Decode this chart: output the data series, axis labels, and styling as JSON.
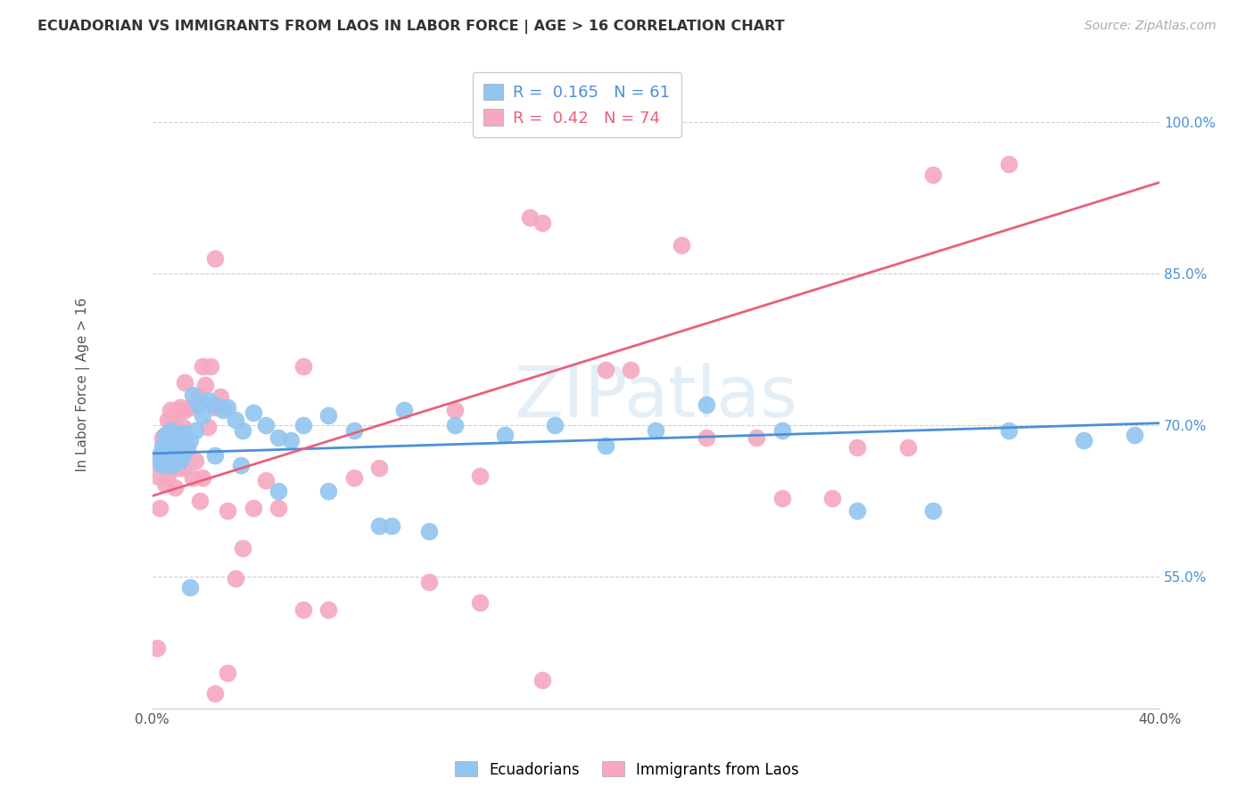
{
  "title": "ECUADORIAN VS IMMIGRANTS FROM LAOS IN LABOR FORCE | AGE > 16 CORRELATION CHART",
  "source": "Source: ZipAtlas.com",
  "ylabel": "In Labor Force | Age > 16",
  "xlim": [
    0.0,
    0.4
  ],
  "ylim": [
    0.42,
    1.06
  ],
  "xticks": [
    0.0,
    0.05,
    0.1,
    0.15,
    0.2,
    0.25,
    0.3,
    0.35,
    0.4
  ],
  "yticks": [
    0.55,
    0.7,
    0.85,
    1.0
  ],
  "ytick_labels": [
    "55.0%",
    "70.0%",
    "85.0%",
    "100.0%"
  ],
  "xtick_labels": [
    "0.0%",
    "",
    "",
    "",
    "",
    "",
    "",
    "",
    "40.0%"
  ],
  "blue_R": 0.165,
  "blue_N": 61,
  "pink_R": 0.42,
  "pink_N": 74,
  "blue_color": "#92c5f0",
  "pink_color": "#f5a8c0",
  "blue_line_color": "#4a90d9",
  "pink_line_color": "#e8607a",
  "background_color": "#ffffff",
  "grid_color": "#d0d0d0",
  "watermark": "ZIPatlas",
  "blue_scatter_x": [
    0.002,
    0.003,
    0.004,
    0.004,
    0.005,
    0.005,
    0.006,
    0.006,
    0.007,
    0.007,
    0.008,
    0.008,
    0.009,
    0.009,
    0.01,
    0.01,
    0.011,
    0.011,
    0.012,
    0.012,
    0.013,
    0.014,
    0.015,
    0.016,
    0.017,
    0.018,
    0.02,
    0.022,
    0.025,
    0.028,
    0.03,
    0.033,
    0.036,
    0.04,
    0.045,
    0.05,
    0.055,
    0.06,
    0.07,
    0.08,
    0.09,
    0.1,
    0.11,
    0.12,
    0.14,
    0.16,
    0.18,
    0.2,
    0.22,
    0.25,
    0.28,
    0.31,
    0.34,
    0.37,
    0.39,
    0.015,
    0.025,
    0.035,
    0.05,
    0.07,
    0.095
  ],
  "blue_scatter_y": [
    0.665,
    0.67,
    0.66,
    0.68,
    0.672,
    0.69,
    0.668,
    0.685,
    0.67,
    0.695,
    0.66,
    0.675,
    0.665,
    0.688,
    0.67,
    0.692,
    0.665,
    0.678,
    0.67,
    0.688,
    0.692,
    0.678,
    0.685,
    0.73,
    0.695,
    0.72,
    0.71,
    0.725,
    0.72,
    0.715,
    0.718,
    0.705,
    0.695,
    0.712,
    0.7,
    0.688,
    0.685,
    0.7,
    0.71,
    0.695,
    0.6,
    0.715,
    0.595,
    0.7,
    0.69,
    0.7,
    0.68,
    0.695,
    0.72,
    0.695,
    0.615,
    0.615,
    0.695,
    0.685,
    0.69,
    0.54,
    0.67,
    0.66,
    0.635,
    0.635,
    0.6
  ],
  "pink_scatter_x": [
    0.002,
    0.002,
    0.003,
    0.003,
    0.004,
    0.004,
    0.005,
    0.005,
    0.006,
    0.006,
    0.006,
    0.007,
    0.007,
    0.007,
    0.008,
    0.008,
    0.008,
    0.009,
    0.009,
    0.009,
    0.01,
    0.01,
    0.01,
    0.011,
    0.011,
    0.012,
    0.012,
    0.013,
    0.013,
    0.014,
    0.015,
    0.016,
    0.017,
    0.018,
    0.019,
    0.02,
    0.021,
    0.022,
    0.023,
    0.025,
    0.027,
    0.03,
    0.033,
    0.036,
    0.04,
    0.045,
    0.05,
    0.06,
    0.07,
    0.08,
    0.09,
    0.11,
    0.13,
    0.155,
    0.18,
    0.21,
    0.24,
    0.27,
    0.3,
    0.155,
    0.02,
    0.025,
    0.06,
    0.12,
    0.15,
    0.19,
    0.22,
    0.25,
    0.28,
    0.31,
    0.34,
    0.13,
    0.025,
    0.03
  ],
  "pink_scatter_y": [
    0.65,
    0.48,
    0.618,
    0.67,
    0.662,
    0.688,
    0.642,
    0.672,
    0.65,
    0.668,
    0.705,
    0.658,
    0.672,
    0.715,
    0.66,
    0.672,
    0.705,
    0.638,
    0.665,
    0.698,
    0.658,
    0.672,
    0.715,
    0.672,
    0.718,
    0.658,
    0.698,
    0.715,
    0.742,
    0.675,
    0.718,
    0.648,
    0.665,
    0.728,
    0.625,
    0.648,
    0.74,
    0.698,
    0.758,
    0.718,
    0.728,
    0.615,
    0.548,
    0.578,
    0.618,
    0.645,
    0.618,
    0.518,
    0.518,
    0.648,
    0.658,
    0.545,
    0.65,
    0.448,
    0.755,
    0.878,
    0.688,
    0.628,
    0.678,
    0.9,
    0.758,
    0.865,
    0.758,
    0.715,
    0.905,
    0.755,
    0.688,
    0.628,
    0.678,
    0.948,
    0.958,
    0.525,
    0.435,
    0.455
  ]
}
